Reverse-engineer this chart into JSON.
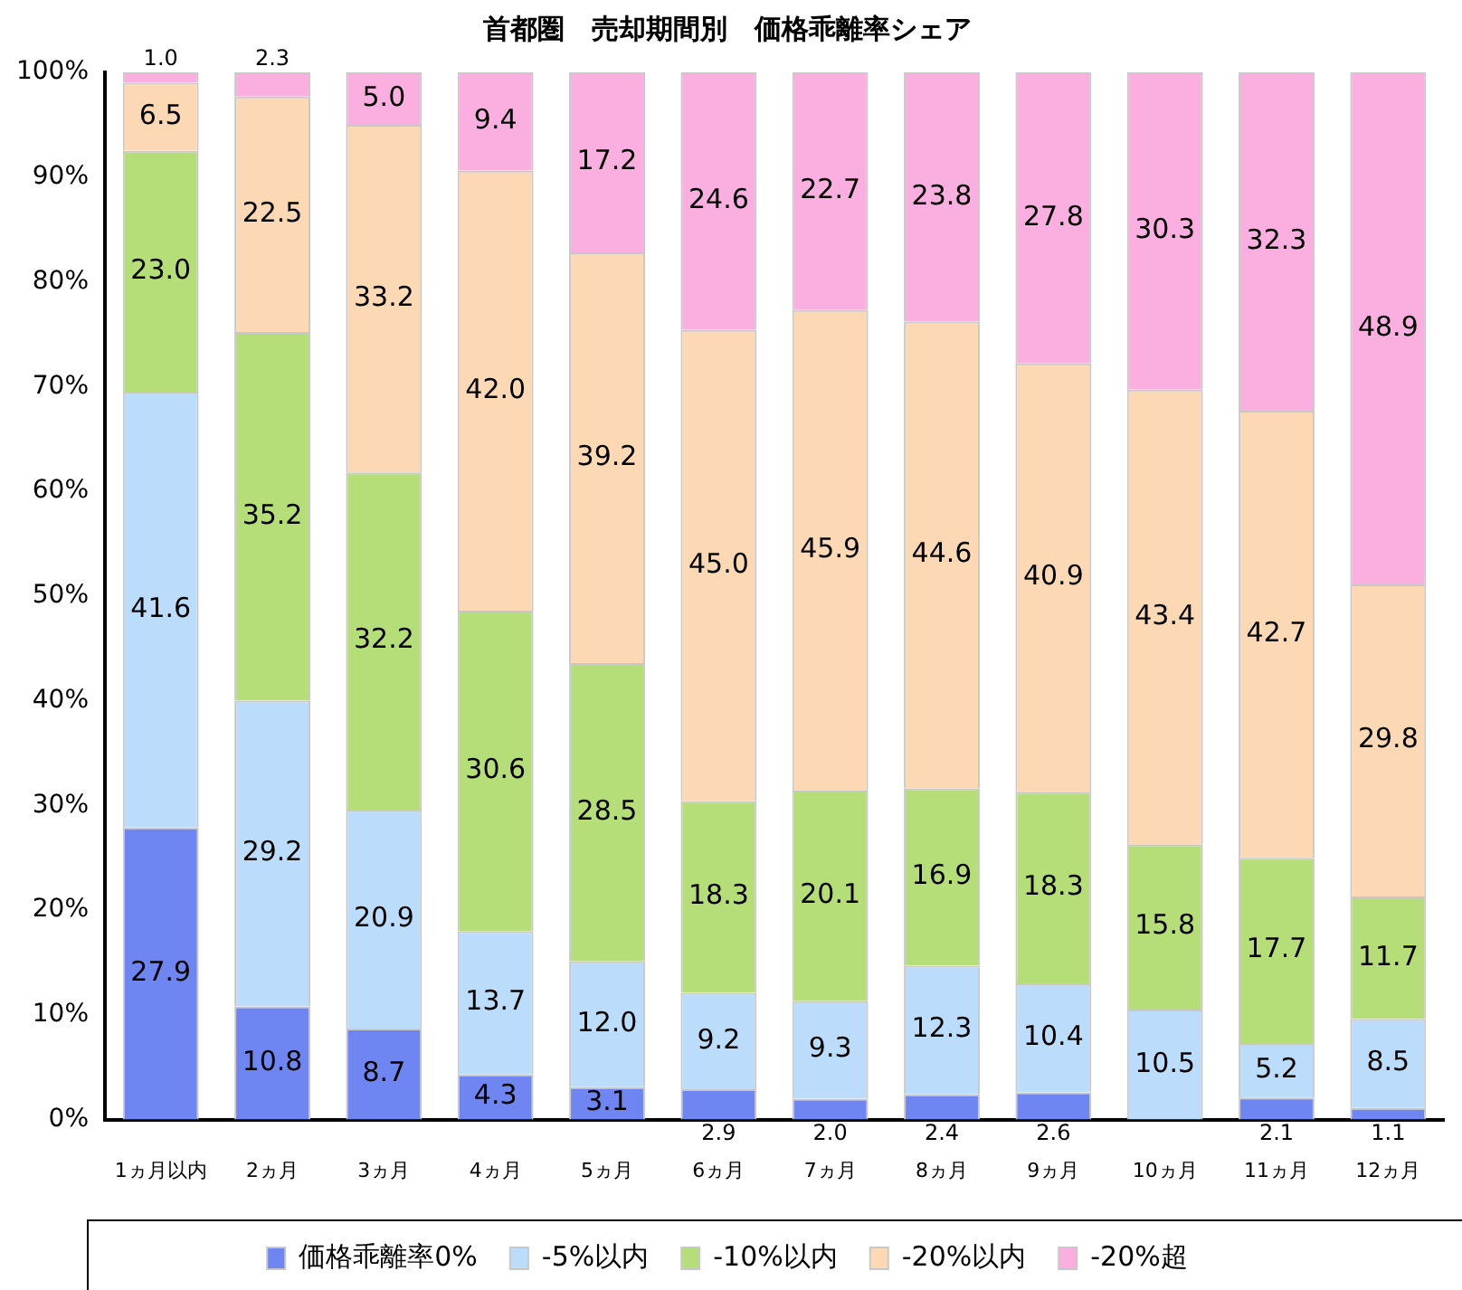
{
  "chart_data": {
    "type": "bar",
    "stacked": true,
    "title": "首都圏　売却期間別　価格乖離率シェア",
    "categories": [
      "1ヵ月以内",
      "2ヵ月",
      "3ヵ月",
      "4ヵ月",
      "5ヵ月",
      "6ヵ月",
      "7ヵ月",
      "8ヵ月",
      "9ヵ月",
      "10ヵ月",
      "11ヵ月",
      "12ヵ月"
    ],
    "series": [
      {
        "name": "価格乖離率0%",
        "color": "#6f86f2",
        "values": [
          27.9,
          10.8,
          8.7,
          4.3,
          3.1,
          2.9,
          2.0,
          2.4,
          2.6,
          null,
          2.1,
          1.1
        ],
        "value_labels": [
          "27.9",
          "10.8",
          "8.7",
          "4.3",
          "3.1",
          "2.9",
          "2.0",
          "2.4",
          "2.6",
          null,
          "2.1",
          "1.1"
        ]
      },
      {
        "name": "-5%以内",
        "color": "#bcdcfc",
        "values": [
          41.6,
          29.2,
          20.9,
          13.7,
          12.0,
          9.2,
          9.3,
          12.3,
          10.4,
          10.5,
          5.2,
          8.5
        ],
        "value_labels": [
          "41.6",
          "29.2",
          "20.9",
          "13.7",
          "12.0",
          "9.2",
          "9.3",
          "12.3",
          "10.4",
          "10.5",
          "5.2",
          "8.5"
        ]
      },
      {
        "name": "-10%以内",
        "color": "#b6de78",
        "values": [
          23.0,
          35.2,
          32.2,
          30.6,
          28.5,
          18.3,
          20.1,
          16.9,
          18.3,
          15.8,
          17.7,
          11.7
        ],
        "value_labels": [
          "23.0",
          "35.2",
          "32.2",
          "30.6",
          "28.5",
          "18.3",
          "20.1",
          "16.9",
          "18.3",
          "15.8",
          "17.7",
          "11.7"
        ]
      },
      {
        "name": "-20%以内",
        "color": "#fdd8b4",
        "values": [
          6.5,
          22.5,
          33.2,
          42.0,
          39.2,
          45.0,
          45.9,
          44.6,
          40.9,
          43.4,
          42.7,
          29.8
        ],
        "value_labels": [
          "6.5",
          "22.5",
          "33.2",
          "42.0",
          "39.2",
          "45.0",
          "45.9",
          "44.6",
          "40.9",
          "43.4",
          "42.7",
          "29.8"
        ]
      },
      {
        "name": "-20%超",
        "color": "#fbaee0",
        "values": [
          1.0,
          2.3,
          5.0,
          9.4,
          17.2,
          24.6,
          22.7,
          23.8,
          27.8,
          30.3,
          32.3,
          48.9
        ],
        "value_labels": [
          "1.0",
          "2.3",
          "5.0",
          "9.4",
          "17.2",
          "24.6",
          "22.7",
          "23.8",
          "27.8",
          "30.3",
          "32.3",
          "48.9"
        ]
      }
    ],
    "ylim": [
      0,
      100
    ],
    "yticks": [
      {
        "value": 0,
        "label": "0%"
      },
      {
        "value": 10,
        "label": "10%"
      },
      {
        "value": 20,
        "label": "20%"
      },
      {
        "value": 30,
        "label": "30%"
      },
      {
        "value": 40,
        "label": "40%"
      },
      {
        "value": 50,
        "label": "50%"
      },
      {
        "value": 60,
        "label": "60%"
      },
      {
        "value": 70,
        "label": "70%"
      },
      {
        "value": 80,
        "label": "80%"
      },
      {
        "value": 90,
        "label": "90%"
      },
      {
        "value": 100,
        "label": "100%"
      }
    ],
    "grid": false,
    "legend": "bottom"
  }
}
